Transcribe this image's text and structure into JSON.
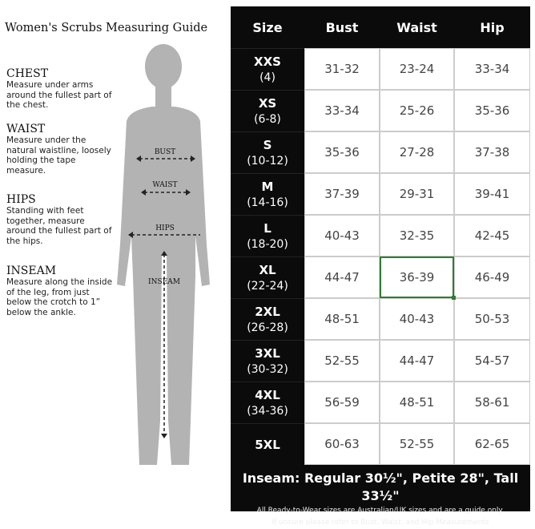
{
  "title": "Women's Scrubs Measuring Guide",
  "sections": [
    {
      "heading": "CHEST",
      "text": "Measure under arms around the fullest part of the chest."
    },
    {
      "heading": "WAIST",
      "text": "Measure under the natural waistline, loosely holding the tape measure."
    },
    {
      "heading": "HIPS",
      "text": "Standing with feet together, measure around the fullest part of the hips."
    },
    {
      "heading": "INSEAM",
      "text": "Measure along the inside of the leg, from just below the crotch to 1” below the ankle."
    }
  ],
  "figure_labels": {
    "bust": "BUST",
    "waist": "WAIST",
    "hips": "HIPS",
    "inseam": "INSEAM"
  },
  "table": {
    "headers": [
      "Size",
      "Bust",
      "Waist",
      "Hip"
    ],
    "rows": [
      {
        "size": "XXS",
        "alt": "(4)",
        "bust": "31-32",
        "waist": "23-24",
        "hip": "33-34"
      },
      {
        "size": "XS",
        "alt": "(6-8)",
        "bust": "33-34",
        "waist": "25-26",
        "hip": "35-36"
      },
      {
        "size": "S",
        "alt": "(10-12)",
        "bust": "35-36",
        "waist": "27-28",
        "hip": "37-38"
      },
      {
        "size": "M",
        "alt": "(14-16)",
        "bust": "37-39",
        "waist": "29-31",
        "hip": "39-41"
      },
      {
        "size": "L",
        "alt": "(18-20)",
        "bust": "40-43",
        "waist": "32-35",
        "hip": "42-45"
      },
      {
        "size": "XL",
        "alt": "(22-24)",
        "bust": "44-47",
        "waist": "36-39",
        "hip": "46-49"
      },
      {
        "size": "2XL",
        "alt": "(26-28)",
        "bust": "48-51",
        "waist": "40-43",
        "hip": "50-53"
      },
      {
        "size": "3XL",
        "alt": "(30-32)",
        "bust": "52-55",
        "waist": "44-47",
        "hip": "54-57"
      },
      {
        "size": "4XL",
        "alt": "(34-36)",
        "bust": "56-59",
        "waist": "48-51",
        "hip": "58-61"
      },
      {
        "size": "5XL",
        "alt": "",
        "bust": "60-63",
        "waist": "52-55",
        "hip": "62-65"
      }
    ],
    "selected_cell": {
      "row": 5,
      "column": "waist"
    }
  },
  "footer": {
    "inseam": "Inseam: Regular 30½\", Petite 28\", Tall 33½\"",
    "note1": "All Ready-to-Wear sizes are Australian/UK sizes and are a guide only.",
    "note2": "If unsure please refer to Bust, Waist, and Hip Measurements"
  },
  "colors": {
    "table_bg": "#0b0b0b",
    "figure": "#b3b3b3",
    "selection": "#2e7d32"
  }
}
